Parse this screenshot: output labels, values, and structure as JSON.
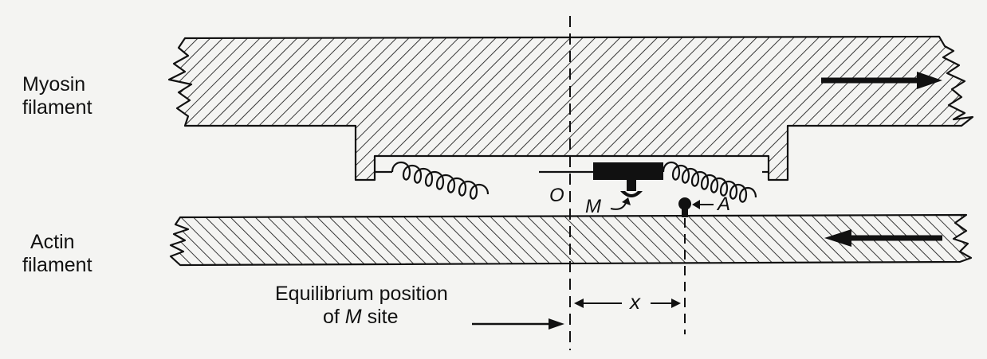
{
  "labels": {
    "myosin_line1": "Myosin",
    "myosin_line2": "filament",
    "actin_line1": "Actin",
    "actin_line2": "filament",
    "origin": "O",
    "m_site": "M",
    "a_site": "A",
    "x_distance": "x",
    "equilibrium_line1": "Equilibrium position",
    "equilibrium_line2_prefix": "of ",
    "equilibrium_line2_m": "M",
    "equilibrium_line2_suffix": " site"
  },
  "motion": {
    "myosin_direction": "right",
    "actin_direction": "left"
  },
  "colors": {
    "ink": "#111111",
    "background": "#f4f4f2"
  }
}
